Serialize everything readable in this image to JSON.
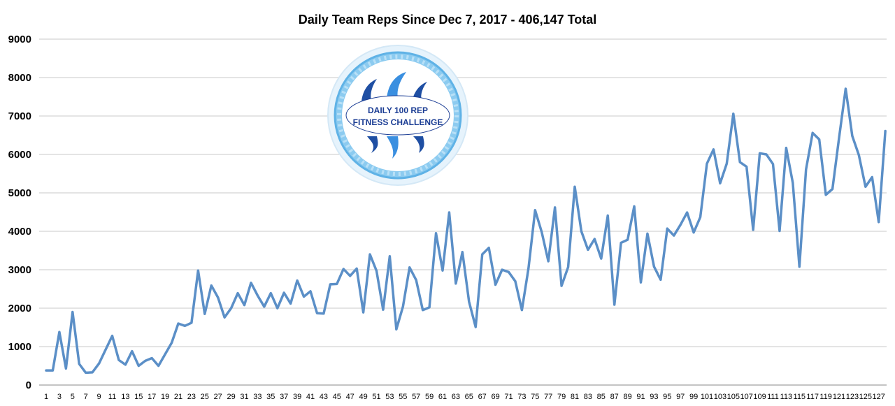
{
  "chart_data": {
    "type": "line",
    "title": "Daily Team Reps Since Dec 7, 2017 - 406,147 Total",
    "xlabel": "",
    "ylabel": "",
    "ylim": [
      0,
      9000
    ],
    "yticks": [
      0,
      1000,
      2000,
      3000,
      4000,
      5000,
      6000,
      7000,
      8000,
      9000
    ],
    "xticks": [
      1,
      3,
      5,
      7,
      9,
      11,
      13,
      15,
      17,
      19,
      21,
      23,
      25,
      27,
      29,
      31,
      33,
      35,
      37,
      39,
      41,
      43,
      45,
      47,
      49,
      51,
      53,
      55,
      57,
      59,
      61,
      63,
      65,
      67,
      69,
      71,
      73,
      75,
      77,
      79,
      81,
      83,
      85,
      87,
      89,
      91,
      93,
      95,
      97,
      99,
      101,
      103,
      105,
      107,
      109,
      111,
      113,
      115,
      117,
      119,
      121,
      123,
      125,
      127
    ],
    "grid": "horizontal",
    "legend": "none",
    "color": "#5b8fc7",
    "series": [
      {
        "values": [
          380,
          380,
          1380,
          430,
          1900,
          550,
          320,
          330,
          560,
          920,
          1280,
          650,
          530,
          880,
          500,
          630,
          700,
          500,
          800,
          1100,
          1600,
          1540,
          1620,
          2980,
          1850,
          2590,
          2280,
          1760,
          2000,
          2390,
          2080,
          2660,
          2330,
          2040,
          2390,
          2000,
          2400,
          2120,
          2720,
          2300,
          2440,
          1870,
          1860,
          2620,
          2630,
          3020,
          2840,
          3030,
          1890,
          3400,
          2970,
          1960,
          3350,
          1450,
          2040,
          3060,
          2730,
          1950,
          2020,
          3950,
          2980,
          4490,
          2640,
          3460,
          2170,
          1510,
          3400,
          3570,
          2610,
          3000,
          2940,
          2700,
          1950,
          3040,
          4550,
          3980,
          3220,
          4620,
          2580,
          3070,
          5160,
          4000,
          3520,
          3800,
          3290,
          4410,
          2090,
          3700,
          3780,
          4650,
          2670,
          3940,
          3080,
          2740,
          4070,
          3890,
          4170,
          4490,
          3970,
          4370,
          5760,
          6130,
          5250,
          5760,
          7060,
          5800,
          5680,
          4040,
          6030,
          6000,
          5750,
          4010,
          6170,
          5260,
          3080,
          5610,
          6560,
          6390,
          4950,
          5100,
          6430,
          7710,
          6480,
          5980,
          5160,
          5410,
          4240,
          6610
        ]
      }
    ]
  },
  "logo": {
    "line1": "DAILY 100 REP",
    "line2": "FITNESS CHALLENGE"
  }
}
